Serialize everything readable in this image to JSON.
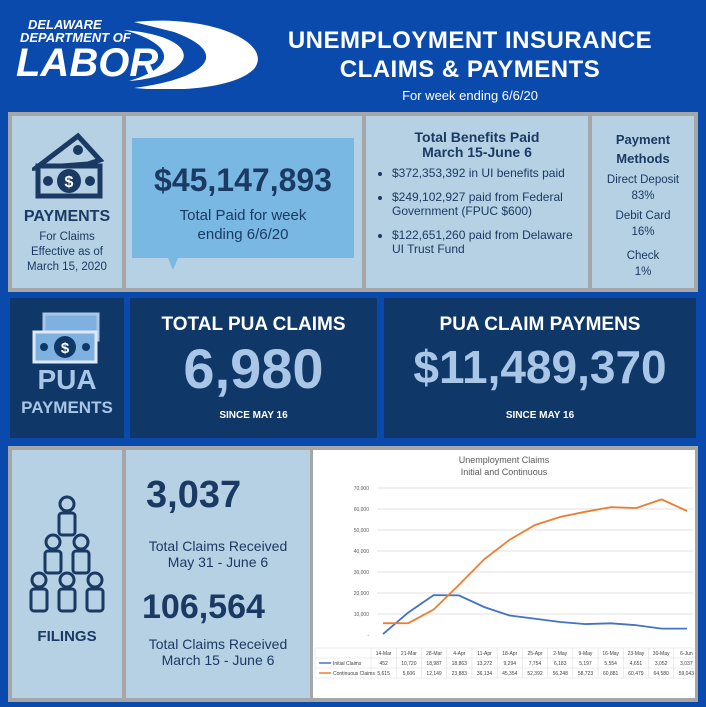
{
  "header": {
    "logo_line1": "DELAWARE",
    "logo_line2": "DEPARTMENT OF",
    "logo_line3": "LABOR",
    "title_line1": "UNEMPLOYMENT INSURANCE",
    "title_line2": "CLAIMS & PAYMENTS",
    "subtitle": "For week ending 6/6/20"
  },
  "payments": {
    "icon": "money-house-icon",
    "title": "PAYMENTS",
    "caption_lines": [
      "For Claims",
      "Effective as of",
      "March 15, 2020"
    ],
    "weekly_total": "$45,147,893",
    "weekly_caption_1": "Total Paid for week",
    "weekly_caption_2": "ending 6/6/20",
    "benefits_title_1": "Total Benefits Paid",
    "benefits_title_2": "March 15-June 6",
    "bullets": [
      "$372,353,392 in UI benefits paid",
      "$249,102,927 paid from Federal Government (FPUC $600)",
      "$122,651,260 paid from Delaware UI Trust Fund"
    ],
    "methods_title_1": "Payment",
    "methods_title_2": "Methods",
    "methods": [
      {
        "label": "Direct Deposit",
        "value": "83%"
      },
      {
        "label": "Debit Card",
        "value": "16%"
      },
      {
        "label": "Check",
        "value": "1%"
      }
    ]
  },
  "pua": {
    "icon": "money-stack-icon",
    "title": "PUA",
    "subtitle": "PAYMENTS",
    "claims_title": "TOTAL PUA CLAIMS",
    "claims_value": "6,980",
    "claims_since": "SINCE MAY 16",
    "payments_title": "PUA CLAIM PAYMENS",
    "payments_value": "$11,489,370",
    "payments_since": "SINCE MAY 16"
  },
  "filings": {
    "icon": "people-pyramid-icon",
    "title": "FILINGS",
    "week_value": "3,037",
    "week_caption_1": "Total Claims Received",
    "week_caption_2": "May 31 - June 6",
    "total_value": "106,564",
    "total_caption_1": "Total Claims Received",
    "total_caption_2": "March 15 - June 6"
  },
  "colors": {
    "initial": "#4472c4",
    "continuous": "#ed7d31",
    "navy": "#1b3a63",
    "panel": "#b6d1e4"
  },
  "chart_data": {
    "type": "line",
    "title_1": "Unemployment Claims",
    "title_2": "Initial and Continuous",
    "categories": [
      "14-Mar",
      "21-Mar",
      "28-Mar",
      "4-Apr",
      "11-Apr",
      "18-Apr",
      "25-Apr",
      "2-May",
      "9-May",
      "16-May",
      "23-May",
      "30-May",
      "6-Jun"
    ],
    "yticks": [
      "-",
      "10,000",
      "20,000",
      "30,000",
      "40,000",
      "50,000",
      "60,000",
      "70,000"
    ],
    "ylim": [
      0,
      70000
    ],
    "grid": true,
    "legend": "data-table",
    "series": [
      {
        "name": "Initial Claims",
        "color": "#4472c4",
        "values": [
          452,
          10720,
          18987,
          18863,
          13272,
          9294,
          7754,
          6183,
          5197,
          5554,
          4651,
          3052,
          3037
        ],
        "labels": [
          "452",
          "10,720",
          "18,987",
          "18,863",
          "13,272",
          "9,294",
          "7,754",
          "6,183",
          "5,197",
          "5,554",
          "4,651",
          "3,052",
          "3,037"
        ]
      },
      {
        "name": "Continuous Claims",
        "color": "#ed7d31",
        "values": [
          5615,
          5606,
          12149,
          23883,
          36134,
          45354,
          52392,
          56248,
          58723,
          60881,
          60479,
          64580,
          59043
        ],
        "labels": [
          "5,615",
          "5,606",
          "12,149",
          "23,883",
          "36,134",
          "45,354",
          "52,392",
          "56,248",
          "58,723",
          "60,881",
          "60,479",
          "64,580",
          "59,043"
        ]
      }
    ]
  }
}
